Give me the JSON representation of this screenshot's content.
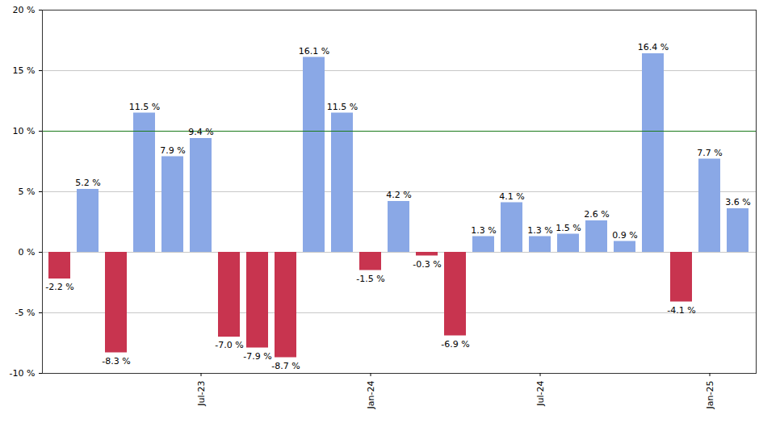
{
  "chart_data": {
    "type": "bar",
    "categories": [
      null,
      null,
      null,
      null,
      null,
      "Jul-23",
      null,
      null,
      null,
      null,
      null,
      "Jan-24",
      null,
      null,
      null,
      null,
      null,
      "Jul-24",
      null,
      null,
      null,
      null,
      null,
      "Jan-25",
      null
    ],
    "values": [
      -2.2,
      5.2,
      -8.3,
      11.5,
      7.9,
      9.4,
      -7.0,
      -7.9,
      -8.7,
      16.1,
      11.5,
      -1.5,
      4.2,
      -0.3,
      -6.9,
      1.3,
      4.1,
      1.3,
      1.5,
      2.6,
      0.9,
      16.4,
      -4.1,
      7.7,
      3.6
    ],
    "value_labels": [
      "-2.2 %",
      "5.2 %",
      "-8.3 %",
      "11.5 %",
      "7.9 %",
      "9.4 %",
      "-7.0 %",
      "-7.9 %",
      "-8.7 %",
      "16.1 %",
      "11.5 %",
      "-1.5 %",
      "4.2 %",
      "-0.3 %",
      "-6.9 %",
      "1.3 %",
      "4.1 %",
      "1.3 %",
      "1.5 %",
      "2.6 %",
      "0.9 %",
      "16.4 %",
      "-4.1 %",
      "7.7 %",
      "3.6 %"
    ],
    "colors": [
      "#c8344f",
      "#8aa8e6",
      "#c8344f",
      "#8aa8e6",
      "#8aa8e6",
      "#8aa8e6",
      "#c8344f",
      "#c8344f",
      "#c8344f",
      "#8aa8e6",
      "#8aa8e6",
      "#c8344f",
      "#8aa8e6",
      "#c8344f",
      "#c8344f",
      "#8aa8e6",
      "#8aa8e6",
      "#8aa8e6",
      "#8aa8e6",
      "#8aa8e6",
      "#8aa8e6",
      "#8aa8e6",
      "#c8344f",
      "#8aa8e6",
      "#8aa8e6"
    ],
    "ylim": [
      -10,
      20
    ],
    "yticks": [
      {
        "value": -10,
        "label": "-10 %"
      },
      {
        "value": -5,
        "label": "-5 %"
      },
      {
        "value": 0,
        "label": "0 %"
      },
      {
        "value": 5,
        "label": "5 %"
      },
      {
        "value": 10,
        "label": "10 %"
      },
      {
        "value": 15,
        "label": "15 %"
      },
      {
        "value": 20,
        "label": "20 %"
      }
    ],
    "reference_line": 10,
    "grid": true,
    "data_labels": true
  }
}
